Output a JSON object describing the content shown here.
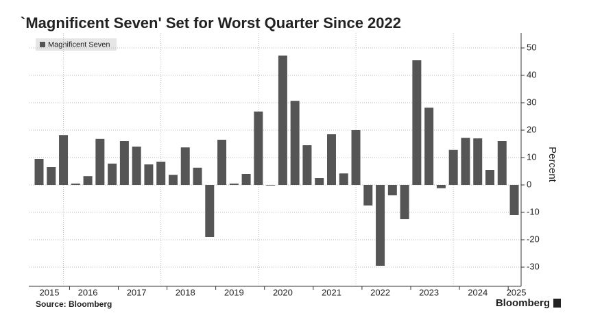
{
  "chart_data": {
    "type": "bar",
    "title": "`Magnificent Seven' Set for Worst Quarter Since 2022",
    "y_label": "Percent",
    "source": "Source: Bloomberg",
    "brand": "Bloomberg",
    "categories": [
      "2015",
      null,
      null,
      null,
      "2016",
      null,
      null,
      null,
      "2017",
      null,
      null,
      null,
      "2018",
      null,
      null,
      null,
      "2019",
      null,
      null,
      null,
      "2020",
      null,
      null,
      null,
      "2021",
      null,
      null,
      null,
      "2022",
      null,
      null,
      null,
      "2023",
      null,
      null,
      null,
      "2024",
      null,
      null,
      "2025"
    ],
    "series": [
      {
        "name": "Magnificent Seven",
        "color": "#555555",
        "values": [
          9.5,
          6.5,
          18.2,
          0.5,
          3.2,
          16.8,
          7.8,
          16,
          14,
          7.5,
          8.5,
          3.7,
          13.7,
          6.3,
          -19,
          16.5,
          0.5,
          4,
          26.8,
          -0.2,
          47.2,
          30.7,
          14.5,
          2.5,
          18.5,
          4.2,
          20,
          -7.5,
          -29.5,
          -3.8,
          -12.5,
          45.5,
          28.2,
          -1.2,
          12.8,
          17.2,
          17,
          5.5,
          16,
          -11
        ]
      }
    ],
    "ylim": [
      -37,
      55.5
    ],
    "yticks": [
      -30,
      -20,
      -10,
      0,
      10,
      20,
      30,
      40,
      50
    ],
    "grid": true
  }
}
